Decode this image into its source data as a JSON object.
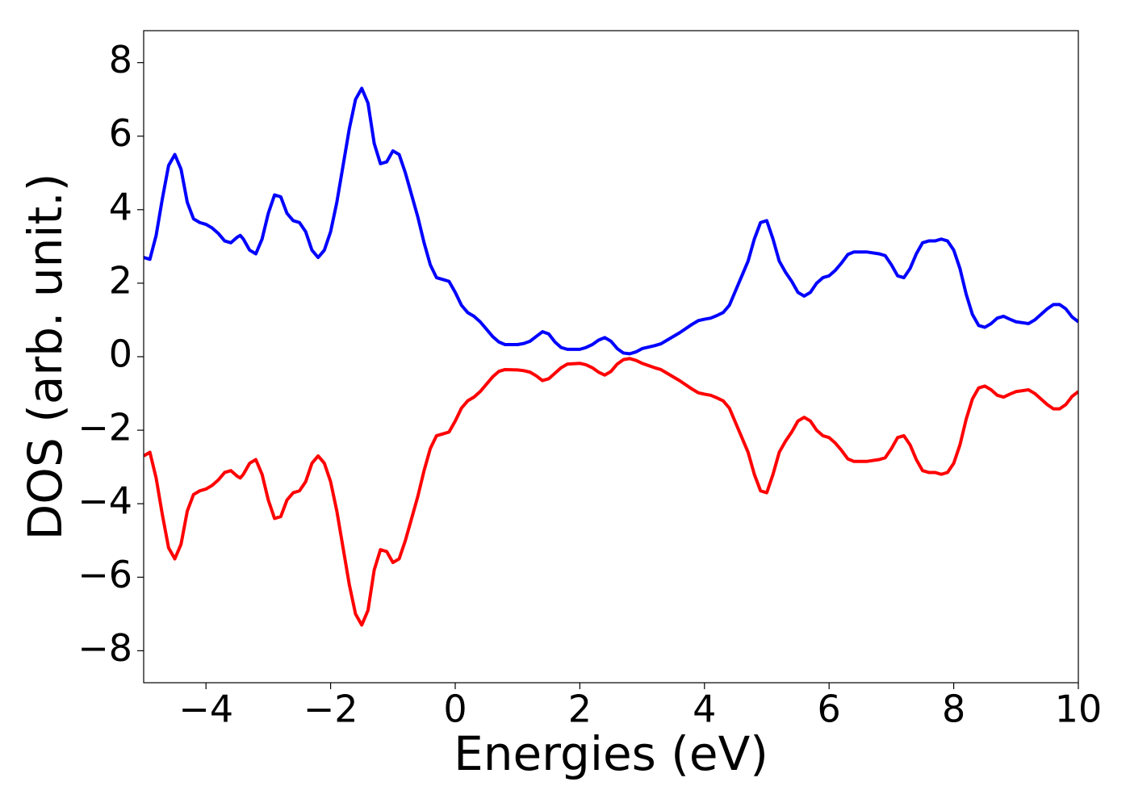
{
  "chart_data": {
    "type": "line",
    "xlabel": "Energies (eV)",
    "ylabel": "DOS (arb. unit.)",
    "x": [
      -5,
      -4.9,
      -4.8,
      -4.7,
      -4.6,
      -4.5,
      -4.4,
      -4.3,
      -4.2,
      -4.1,
      -4,
      -3.9,
      -3.8,
      -3.7,
      -3.6,
      -3.5,
      -3.45,
      -3.4,
      -3.3,
      -3.2,
      -3.1,
      -3,
      -2.9,
      -2.8,
      -2.7,
      -2.6,
      -2.5,
      -2.4,
      -2.3,
      -2.2,
      -2.1,
      -2,
      -1.9,
      -1.8,
      -1.7,
      -1.6,
      -1.5,
      -1.4,
      -1.3,
      -1.2,
      -1.1,
      -1,
      -0.9,
      -0.8,
      -0.7,
      -0.6,
      -0.5,
      -0.4,
      -0.3,
      -0.2,
      -0.1,
      0,
      0.1,
      0.2,
      0.3,
      0.4,
      0.5,
      0.6,
      0.7,
      0.8,
      1,
      1.1,
      1.2,
      1.3,
      1.4,
      1.5,
      1.6,
      1.7,
      1.8,
      2,
      2.1,
      2.2,
      2.3,
      2.4,
      2.5,
      2.6,
      2.7,
      2.8,
      2.9,
      3,
      3.2,
      3.3,
      3.4,
      3.6,
      3.8,
      3.9,
      4,
      4.1,
      4.2,
      4.3,
      4.4,
      4.5,
      4.6,
      4.7,
      4.8,
      4.9,
      5,
      5.1,
      5.2,
      5.3,
      5.4,
      5.5,
      5.6,
      5.7,
      5.8,
      5.9,
      6,
      6.1,
      6.2,
      6.3,
      6.4,
      6.6,
      6.8,
      6.9,
      7,
      7.1,
      7.2,
      7.3,
      7.4,
      7.5,
      7.6,
      7.7,
      7.8,
      7.9,
      8,
      8.1,
      8.2,
      8.3,
      8.4,
      8.5,
      8.6,
      8.7,
      8.8,
      8.9,
      9,
      9.2,
      9.3,
      9.4,
      9.5,
      9.6,
      9.7,
      9.8,
      9.9,
      10
    ],
    "series": [
      {
        "color": "#0000ff",
        "values": [
          2.7,
          2.65,
          3.3,
          4.3,
          5.2,
          5.5,
          5.1,
          4.2,
          3.75,
          3.65,
          3.6,
          3.5,
          3.35,
          3.15,
          3.1,
          3.25,
          3.3,
          3.2,
          2.9,
          2.8,
          3.2,
          3.9,
          4.4,
          4.35,
          3.9,
          3.7,
          3.65,
          3.4,
          2.9,
          2.7,
          2.9,
          3.4,
          4.2,
          5.2,
          6.2,
          7,
          7.3,
          6.9,
          5.8,
          5.25,
          5.3,
          5.6,
          5.5,
          5,
          4.4,
          3.8,
          3.1,
          2.5,
          2.15,
          2.1,
          2.05,
          1.75,
          1.4,
          1.2,
          1.1,
          0.95,
          0.75,
          0.55,
          0.4,
          0.33,
          0.33,
          0.36,
          0.42,
          0.55,
          0.68,
          0.62,
          0.4,
          0.25,
          0.2,
          0.2,
          0.25,
          0.33,
          0.45,
          0.52,
          0.42,
          0.22,
          0.1,
          0.08,
          0.13,
          0.22,
          0.3,
          0.35,
          0.45,
          0.65,
          0.88,
          0.98,
          1.02,
          1.05,
          1.12,
          1.2,
          1.4,
          1.8,
          2.2,
          2.6,
          3.2,
          3.65,
          3.7,
          3.2,
          2.6,
          2.3,
          2.05,
          1.75,
          1.65,
          1.75,
          2,
          2.15,
          2.2,
          2.35,
          2.55,
          2.78,
          2.85,
          2.85,
          2.8,
          2.75,
          2.5,
          2.2,
          2.15,
          2.4,
          2.8,
          3.1,
          3.15,
          3.15,
          3.2,
          3.15,
          2.9,
          2.4,
          1.7,
          1.15,
          0.85,
          0.8,
          0.9,
          1.05,
          1.1,
          1.02,
          0.95,
          0.9,
          1,
          1.15,
          1.3,
          1.42,
          1.42,
          1.3,
          1.08,
          0.95
        ]
      },
      {
        "color": "#ff0000",
        "values": [
          -2.7,
          -2.6,
          -3.3,
          -4.3,
          -5.2,
          -5.5,
          -5.1,
          -4.2,
          -3.75,
          -3.65,
          -3.6,
          -3.5,
          -3.35,
          -3.15,
          -3.1,
          -3.25,
          -3.3,
          -3.2,
          -2.9,
          -2.8,
          -3.2,
          -3.9,
          -4.4,
          -4.35,
          -3.9,
          -3.7,
          -3.65,
          -3.4,
          -2.9,
          -2.7,
          -2.9,
          -3.4,
          -4.2,
          -5.2,
          -6.2,
          -7,
          -7.3,
          -6.9,
          -5.8,
          -5.25,
          -5.3,
          -5.6,
          -5.5,
          -5,
          -4.4,
          -3.8,
          -3.1,
          -2.5,
          -2.15,
          -2.1,
          -2.05,
          -1.75,
          -1.4,
          -1.2,
          -1.1,
          -0.95,
          -0.75,
          -0.55,
          -0.4,
          -0.35,
          -0.36,
          -0.38,
          -0.42,
          -0.52,
          -0.65,
          -0.6,
          -0.45,
          -0.3,
          -0.2,
          -0.18,
          -0.22,
          -0.3,
          -0.42,
          -0.5,
          -0.4,
          -0.2,
          -0.08,
          -0.05,
          -0.1,
          -0.18,
          -0.3,
          -0.35,
          -0.45,
          -0.65,
          -0.88,
          -0.98,
          -1.02,
          -1.05,
          -1.12,
          -1.2,
          -1.4,
          -1.8,
          -2.2,
          -2.6,
          -3.2,
          -3.65,
          -3.7,
          -3.2,
          -2.6,
          -2.3,
          -2.05,
          -1.75,
          -1.65,
          -1.75,
          -2,
          -2.15,
          -2.2,
          -2.35,
          -2.55,
          -2.78,
          -2.85,
          -2.85,
          -2.8,
          -2.75,
          -2.5,
          -2.2,
          -2.15,
          -2.4,
          -2.8,
          -3.1,
          -3.15,
          -3.15,
          -3.2,
          -3.15,
          -2.9,
          -2.4,
          -1.7,
          -1.15,
          -0.85,
          -0.8,
          -0.9,
          -1.05,
          -1.1,
          -1.02,
          -0.95,
          -0.9,
          -1,
          -1.15,
          -1.3,
          -1.42,
          -1.42,
          -1.3,
          -1.08,
          -0.95
        ]
      }
    ],
    "xlim": [
      -5,
      10
    ],
    "xticks": [
      {
        "value": -4,
        "label": "−4"
      },
      {
        "value": -2,
        "label": "−2"
      },
      0,
      2,
      4,
      6,
      8,
      10
    ],
    "ylim": [
      -8.87,
      8.87
    ],
    "yticks": [
      {
        "value": -8,
        "label": "−8"
      },
      {
        "value": -6,
        "label": "−6"
      },
      {
        "value": -4,
        "label": "−4"
      },
      {
        "value": -2,
        "label": "−2"
      },
      0,
      2,
      4,
      6,
      8
    ],
    "grid": false
  }
}
